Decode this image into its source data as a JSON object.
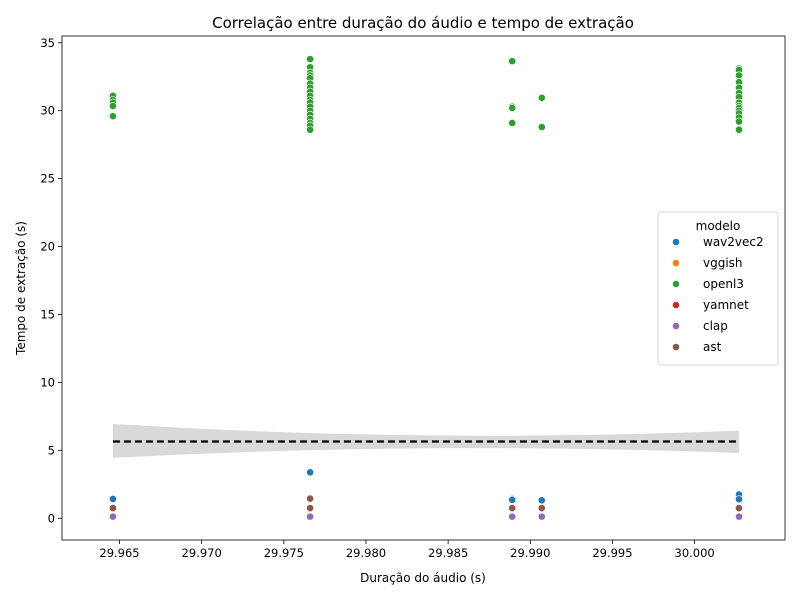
{
  "chart_data": {
    "type": "scatter",
    "title": "Correlação entre duração do áudio e tempo de extração",
    "xlabel": "Duração do áudio (s)",
    "ylabel": "Tempo de extração (s)",
    "xlim": [
      29.9615,
      30.0055
    ],
    "ylim": [
      -1.6,
      35.5
    ],
    "x_ticks": [
      29.965,
      29.97,
      29.975,
      29.98,
      29.985,
      29.99,
      29.995,
      30.0
    ],
    "x_tick_labels": [
      "29.965",
      "29.970",
      "29.975",
      "29.980",
      "29.985",
      "29.990",
      "29.995",
      "30.000"
    ],
    "y_ticks": [
      0,
      5,
      10,
      15,
      20,
      25,
      30,
      35
    ],
    "y_tick_labels": [
      "0",
      "5",
      "10",
      "15",
      "20",
      "25",
      "30",
      "35"
    ],
    "grid": false,
    "legend": {
      "title": "modelo",
      "placement": "center-right"
    },
    "regression": {
      "style": "dashed",
      "color": "#000000",
      "x": [
        29.9646,
        30.0027
      ],
      "y": [
        5.65,
        5.65
      ],
      "ci_upper": [
        6.95,
        6.45
      ],
      "ci_mid_upper": 6.1,
      "ci_lower": [
        4.45,
        4.8
      ],
      "ci_mid_lower": 5.15,
      "ci_color": "#d9d9d9"
    },
    "series": [
      {
        "name": "wav2vec2",
        "color": "#1f77b4",
        "points": [
          [
            29.9646,
            1.38
          ],
          [
            29.9646,
            1.42
          ],
          [
            29.9766,
            3.38
          ],
          [
            29.9766,
            1.45
          ],
          [
            29.9766,
            1.4
          ],
          [
            29.9889,
            1.42
          ],
          [
            29.9889,
            1.36
          ],
          [
            29.9907,
            1.32
          ],
          [
            30.0027,
            1.75
          ],
          [
            30.0027,
            1.4
          ]
        ]
      },
      {
        "name": "vggish",
        "color": "#ff7f0e",
        "points": [
          [
            29.9646,
            0.72
          ],
          [
            29.9766,
            0.72
          ],
          [
            29.9889,
            0.72
          ],
          [
            29.9907,
            0.72
          ],
          [
            30.0027,
            0.72
          ]
        ]
      },
      {
        "name": "openl3",
        "color": "#2ca02c",
        "points": [
          [
            29.9646,
            31.1
          ],
          [
            29.9646,
            30.8
          ],
          [
            29.9646,
            30.6
          ],
          [
            29.9646,
            30.35
          ],
          [
            29.9646,
            29.6
          ],
          [
            29.9766,
            33.8
          ],
          [
            29.9766,
            33.2
          ],
          [
            29.9766,
            32.8
          ],
          [
            29.9766,
            32.6
          ],
          [
            29.9766,
            32.4
          ],
          [
            29.9766,
            32.0
          ],
          [
            29.9766,
            31.7
          ],
          [
            29.9766,
            31.4
          ],
          [
            29.9766,
            31.1
          ],
          [
            29.9766,
            30.8
          ],
          [
            29.9766,
            30.6
          ],
          [
            29.9766,
            30.3
          ],
          [
            29.9766,
            30.0
          ],
          [
            29.9766,
            29.7
          ],
          [
            29.9766,
            29.4
          ],
          [
            29.9766,
            29.1
          ],
          [
            29.9766,
            28.9
          ],
          [
            29.9766,
            28.6
          ],
          [
            29.9889,
            33.65
          ],
          [
            29.9889,
            30.3
          ],
          [
            29.9889,
            30.2
          ],
          [
            29.9889,
            29.1
          ],
          [
            29.9907,
            30.95
          ],
          [
            29.9907,
            28.8
          ],
          [
            30.0027,
            33.1
          ],
          [
            30.0027,
            33.0
          ],
          [
            30.0027,
            32.6
          ],
          [
            30.0027,
            32.1
          ],
          [
            30.0027,
            31.7
          ],
          [
            30.0027,
            31.3
          ],
          [
            30.0027,
            31.0
          ],
          [
            30.0027,
            30.6
          ],
          [
            30.0027,
            30.35
          ],
          [
            30.0027,
            30.2
          ],
          [
            30.0027,
            30.0
          ],
          [
            30.0027,
            29.8
          ],
          [
            30.0027,
            29.5
          ],
          [
            30.0027,
            29.2
          ],
          [
            30.0027,
            28.6
          ]
        ]
      },
      {
        "name": "yamnet",
        "color": "#d62728",
        "points": [
          [
            29.9646,
            0.7
          ],
          [
            29.9766,
            0.7
          ],
          [
            29.9889,
            0.7
          ],
          [
            29.9907,
            0.7
          ],
          [
            30.0027,
            0.7
          ]
        ]
      },
      {
        "name": "clap",
        "color": "#9467bd",
        "points": [
          [
            29.9646,
            0.12
          ],
          [
            29.9766,
            0.12
          ],
          [
            29.9889,
            0.12
          ],
          [
            29.9907,
            0.12
          ],
          [
            30.0027,
            0.12
          ]
        ]
      },
      {
        "name": "ast",
        "color": "#8c564b",
        "points": [
          [
            29.9646,
            0.75
          ],
          [
            29.9766,
            1.45
          ],
          [
            29.9766,
            0.75
          ],
          [
            29.9889,
            0.75
          ],
          [
            29.9907,
            0.75
          ],
          [
            30.0027,
            0.75
          ]
        ]
      }
    ]
  }
}
